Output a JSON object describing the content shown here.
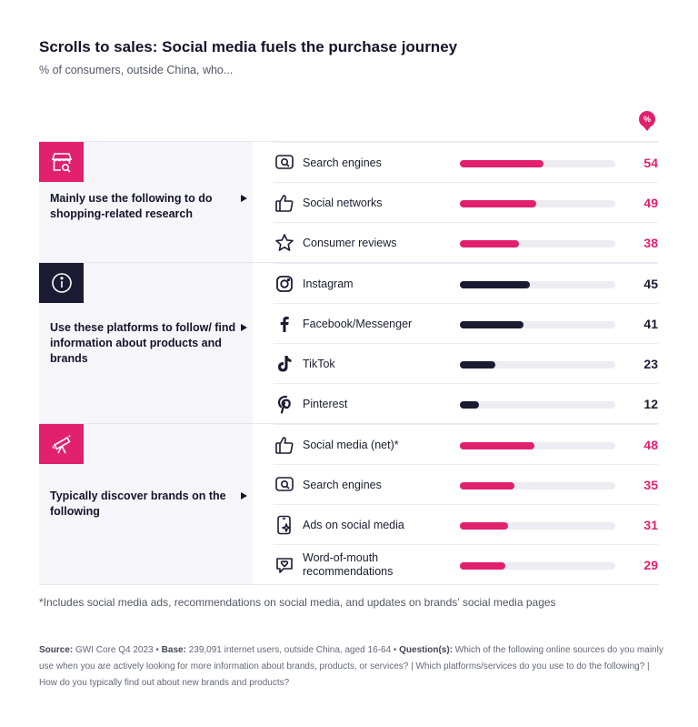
{
  "title": "Scrolls to sales: Social media fuels the purchase journey",
  "subtitle": "% of consumers, outside China, who...",
  "percent_badge": "%",
  "colors": {
    "pink": "#e1206e",
    "navy": "#1b1b33",
    "track": "#ececf2"
  },
  "chart_data": {
    "type": "bar",
    "orientation": "horizontal",
    "xlim": [
      0,
      100
    ],
    "groups": [
      {
        "label": "Mainly use the following to do shopping-related research",
        "icon": "shop-search-icon",
        "color": "#e1206e",
        "items": [
          {
            "label": "Search engines",
            "value": 54,
            "icon": "search-engine-icon"
          },
          {
            "label": "Social networks",
            "value": 49,
            "icon": "thumbs-up-icon"
          },
          {
            "label": "Consumer reviews",
            "value": 38,
            "icon": "star-icon"
          }
        ]
      },
      {
        "label": "Use these platforms to follow/ find information about products and brands",
        "icon": "info-icon",
        "color": "#1b1b33",
        "items": [
          {
            "label": "Instagram",
            "value": 45,
            "icon": "instagram-icon"
          },
          {
            "label": "Facebook/Messenger",
            "value": 41,
            "icon": "facebook-icon"
          },
          {
            "label": "TikTok",
            "value": 23,
            "icon": "tiktok-icon"
          },
          {
            "label": "Pinterest",
            "value": 12,
            "icon": "pinterest-icon"
          }
        ]
      },
      {
        "label": "Typically discover brands on the following",
        "icon": "telescope-icon",
        "color": "#e1206e",
        "items": [
          {
            "label": "Social media (net)*",
            "value": 48,
            "icon": "thumbs-up-icon"
          },
          {
            "label": "Search engines",
            "value": 35,
            "icon": "search-engine-icon"
          },
          {
            "label": "Ads on social media",
            "value": 31,
            "icon": "phone-sparkle-icon"
          },
          {
            "label": "Word-of-mouth recommendations",
            "value": 29,
            "icon": "heart-chat-icon"
          }
        ]
      }
    ]
  },
  "footnote": "*Includes social media ads, recommendations on social media, and updates on brands’ social media pages",
  "source": {
    "source_label": "Source:",
    "source_text": " GWI Core Q4 2023 • ",
    "base_label": "Base:",
    "base_text": " 239,091 internet users, outside China, aged 16-64 • ",
    "question_label": "Question(s):",
    "question_text": " Which of the following online sources do you mainly use when you are actively looking for more information about brands, products, or services? | Which platforms/services do you use to do the following? | How do you typically find out about new brands and products?"
  }
}
